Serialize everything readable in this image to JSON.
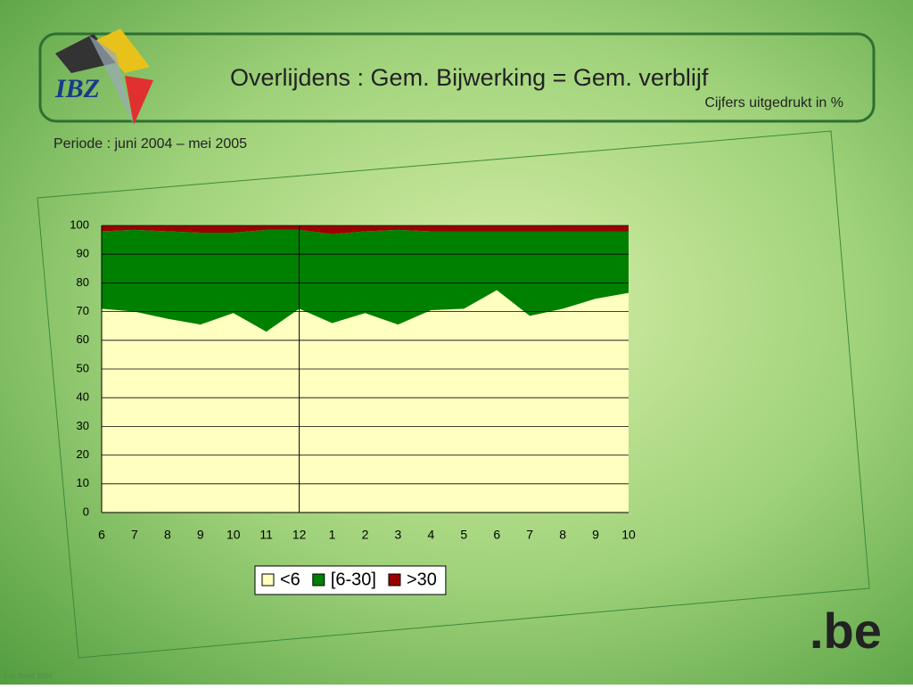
{
  "header": {
    "logo": "IBZ",
    "title": "Overlijdens : Gem. Bijwerking  = Gem. verblijf",
    "subtitle": "Cijfers uitgedrukt in %"
  },
  "period": "Periode : juni 2004 – mei 2005",
  "brand": ".be",
  "credit": "Eric Braet 2005",
  "chart_data": {
    "type": "stacked-area",
    "categories": [
      "6",
      "7",
      "8",
      "9",
      "10",
      "11",
      "12",
      "1",
      "2",
      "3",
      "4",
      "5",
      "6",
      "7",
      "8",
      "9",
      "10"
    ],
    "series": [
      {
        "name": "<6",
        "color": "#ffffc0",
        "values": [
          71,
          70,
          67.5,
          65.5,
          69.5,
          63,
          71,
          66,
          69.5,
          65.5,
          70.5,
          71,
          77.5,
          68.5,
          71,
          74.5,
          76.5
        ]
      },
      {
        "name": "[6-30]",
        "color": "#008000",
        "values": [
          27,
          28.5,
          30.5,
          32,
          28,
          35.5,
          27.5,
          31,
          28.5,
          33,
          27.5,
          27,
          20.5,
          29.5,
          27,
          23.5,
          21.5
        ]
      },
      {
        "name": ">30",
        "color": "#990000",
        "values": [
          2,
          1.5,
          2,
          2.5,
          2.5,
          1.5,
          1.5,
          3,
          2,
          1.5,
          2,
          2,
          2,
          2,
          2,
          2,
          2
        ]
      }
    ],
    "ylim": [
      0,
      100
    ],
    "yticks": [
      0,
      10,
      20,
      30,
      40,
      50,
      60,
      70,
      80,
      90,
      100
    ],
    "grid": true,
    "legend": "bottom"
  }
}
